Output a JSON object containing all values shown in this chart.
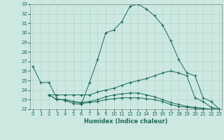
{
  "xlabel": "Humidex (Indice chaleur)",
  "bg_color": "#cce8e0",
  "line_color": "#1a6b5a",
  "grid_color": "#b0d8cc",
  "xmin": 0,
  "xmax": 23,
  "ymin": 22,
  "ymax": 33,
  "line1": [
    [
      0,
      26.5
    ],
    [
      1,
      24.8
    ],
    [
      2,
      24.8
    ],
    [
      3,
      23.1
    ],
    [
      4,
      22.9
    ],
    [
      5,
      22.6
    ],
    [
      6,
      22.5
    ],
    [
      7,
      24.8
    ],
    [
      8,
      27.2
    ],
    [
      9,
      30.0
    ],
    [
      10,
      30.3
    ],
    [
      11,
      31.2
    ],
    [
      12,
      32.8
    ],
    [
      13,
      33.0
    ],
    [
      14,
      32.5
    ],
    [
      15,
      31.8
    ],
    [
      16,
      30.8
    ],
    [
      17,
      29.2
    ],
    [
      18,
      27.2
    ],
    [
      19,
      25.8
    ],
    [
      20,
      25.5
    ],
    [
      21,
      23.2
    ],
    [
      22,
      22.8
    ],
    [
      23,
      22.0
    ]
  ],
  "line2": [
    [
      2,
      23.5
    ],
    [
      3,
      23.5
    ],
    [
      4,
      23.5
    ],
    [
      5,
      23.5
    ],
    [
      6,
      23.5
    ],
    [
      7,
      23.5
    ],
    [
      8,
      23.8
    ],
    [
      9,
      24.0
    ],
    [
      10,
      24.2
    ],
    [
      11,
      24.5
    ],
    [
      12,
      24.8
    ],
    [
      13,
      25.0
    ],
    [
      14,
      25.2
    ],
    [
      15,
      25.5
    ],
    [
      16,
      25.8
    ],
    [
      17,
      26.0
    ],
    [
      18,
      25.8
    ],
    [
      19,
      25.5
    ],
    [
      20,
      23.2
    ],
    [
      21,
      22.8
    ],
    [
      22,
      22.2
    ],
    [
      23,
      22.0
    ]
  ],
  "line3": [
    [
      2,
      23.5
    ],
    [
      3,
      23.0
    ],
    [
      4,
      23.0
    ],
    [
      5,
      22.8
    ],
    [
      6,
      22.6
    ],
    [
      7,
      22.7
    ],
    [
      8,
      22.8
    ],
    [
      9,
      23.0
    ],
    [
      10,
      23.1
    ],
    [
      11,
      23.2
    ],
    [
      12,
      23.2
    ],
    [
      13,
      23.2
    ],
    [
      14,
      23.1
    ],
    [
      15,
      23.0
    ],
    [
      16,
      22.8
    ],
    [
      17,
      22.5
    ],
    [
      18,
      22.3
    ],
    [
      19,
      22.2
    ],
    [
      20,
      22.1
    ],
    [
      21,
      22.0
    ],
    [
      22,
      22.0
    ],
    [
      23,
      22.0
    ]
  ],
  "line4": [
    [
      2,
      23.5
    ],
    [
      3,
      23.0
    ],
    [
      4,
      23.0
    ],
    [
      5,
      22.8
    ],
    [
      6,
      22.7
    ],
    [
      7,
      22.8
    ],
    [
      8,
      23.0
    ],
    [
      9,
      23.3
    ],
    [
      10,
      23.5
    ],
    [
      11,
      23.6
    ],
    [
      12,
      23.7
    ],
    [
      13,
      23.7
    ],
    [
      14,
      23.5
    ],
    [
      15,
      23.3
    ],
    [
      16,
      23.0
    ],
    [
      17,
      22.7
    ],
    [
      18,
      22.5
    ],
    [
      19,
      22.3
    ],
    [
      20,
      22.2
    ],
    [
      21,
      22.1
    ],
    [
      22,
      22.0
    ],
    [
      23,
      22.0
    ]
  ]
}
